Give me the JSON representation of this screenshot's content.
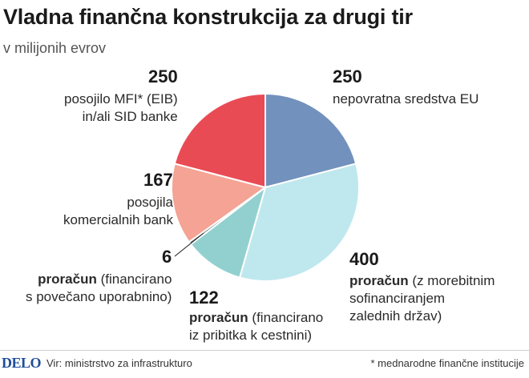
{
  "title": "Vladna finančna konstrukcija za drugi tir",
  "subtitle": "v milijonih evrov",
  "chart_data": {
    "type": "pie",
    "title": "Vladna finančna konstrukcija za drugi tir",
    "subtitle": "v milijonih evrov",
    "start_angle_deg": 0,
    "direction": "clockwise",
    "slices": [
      {
        "value": 250,
        "color": "#7291bd",
        "label_lines": [
          "nepovratna sredstva EU"
        ],
        "highlight": ""
      },
      {
        "value": 400,
        "color": "#bfe8ee",
        "label_lines": [
          "proračun (z morebitnim",
          "sofinanciranjem",
          "zalednih držav)"
        ],
        "highlight": "proračun"
      },
      {
        "value": 122,
        "color": "#92d0cf",
        "label_lines": [
          "proračun (financirano",
          "iz pribitka k cestnini)"
        ],
        "highlight": "proračun"
      },
      {
        "value": 6,
        "color": "#5f6f74",
        "label_lines": [
          "proračun (financirano",
          "s povečano uporabnino)"
        ],
        "highlight": "proračun"
      },
      {
        "value": 167,
        "color": "#f4a394",
        "label_lines": [
          "posojila",
          "komercialnih bank"
        ],
        "highlight": ""
      },
      {
        "value": 250,
        "color": "#e94b55",
        "label_lines": [
          "posojilo MFI* (EIB)",
          "in/ali SID banke"
        ],
        "highlight": ""
      }
    ]
  },
  "footer": {
    "logo": "DELO",
    "source": "Vir: ministrstvo za infrastrukturo",
    "note": "* mednarodne finančne institucije"
  }
}
